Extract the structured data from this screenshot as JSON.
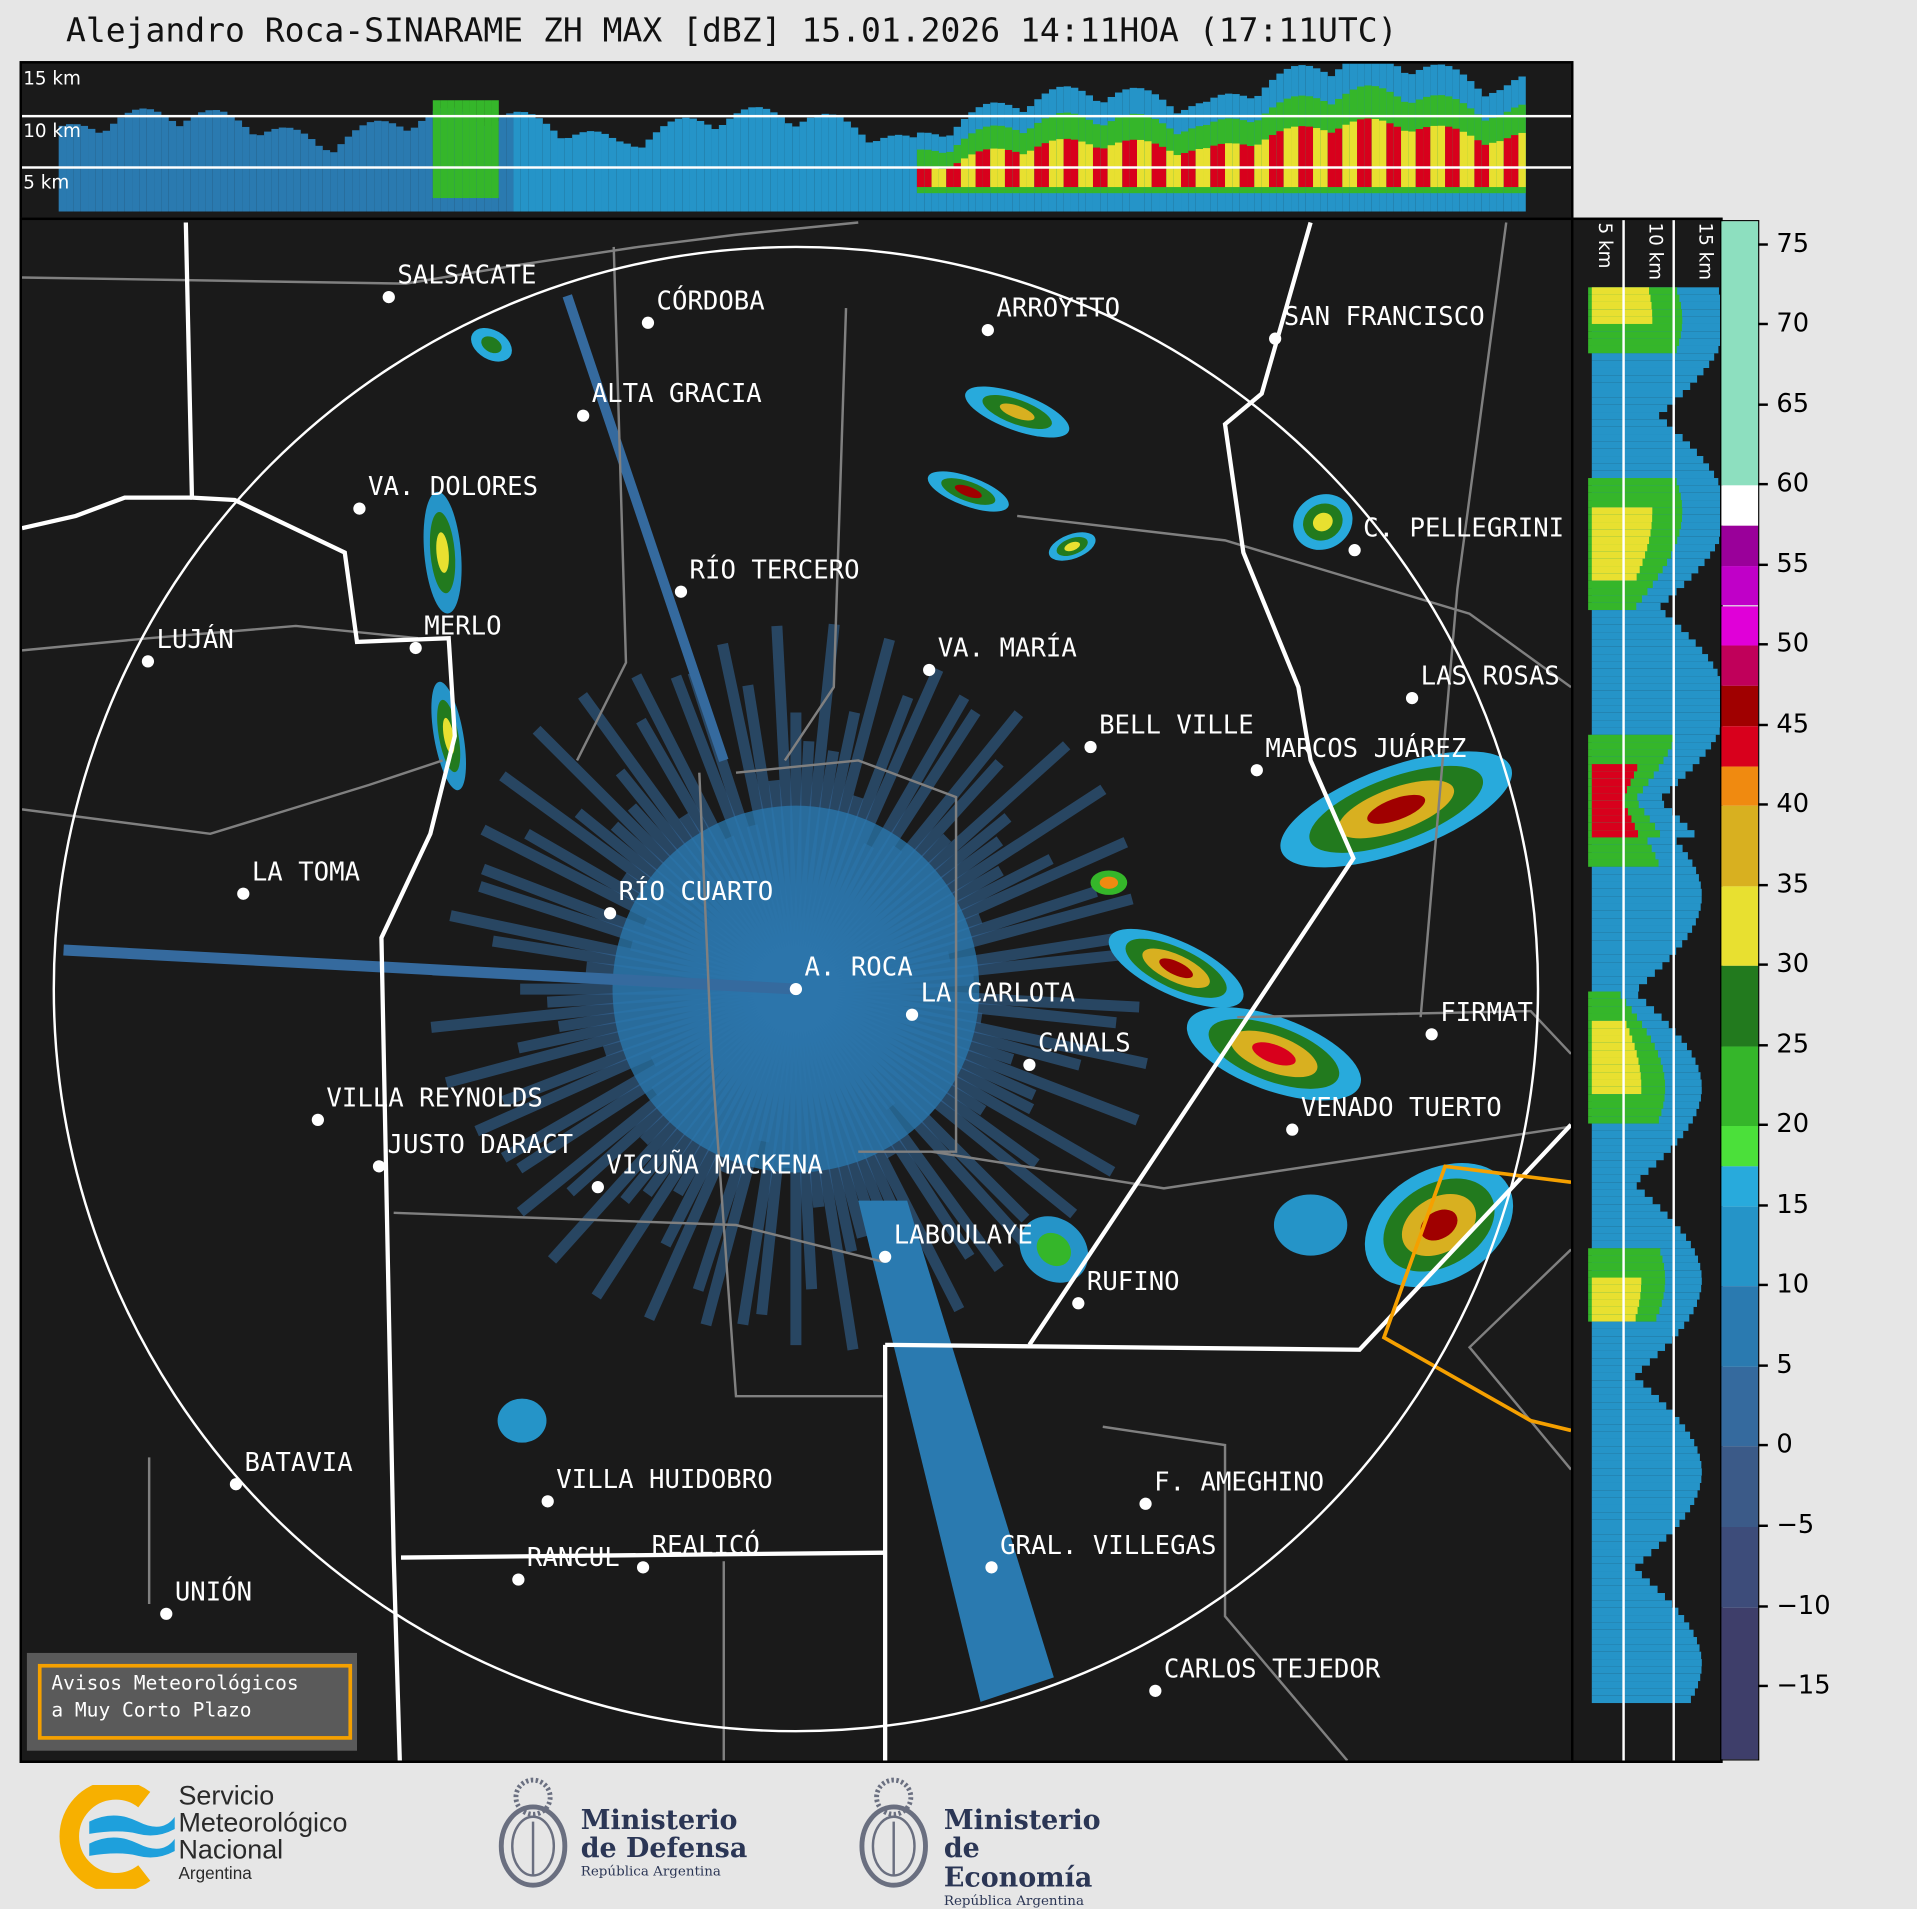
{
  "title": "Alejandro Roca-SINARAME ZH MAX [dBZ] 15.01.2026 14:11HOA (17:11UTC)",
  "top_panel": {
    "labels": [
      "15 km",
      "10 km",
      "5 km"
    ]
  },
  "side_panel": {
    "labels": [
      "5 km",
      "10 km",
      "15 km"
    ]
  },
  "colorbar": {
    "unit": "dBZ",
    "ticks": [
      "75",
      "70",
      "65",
      "60",
      "55",
      "50",
      "45",
      "40",
      "35",
      "30",
      "25",
      "20",
      "15",
      "10",
      "5",
      "0",
      "−5",
      "−10",
      "−15"
    ],
    "range": [
      -19.5,
      76.5
    ],
    "stops": [
      {
        "from": 60,
        "color": "#8ddfbf"
      },
      {
        "from": 57.5,
        "color": "#ffffff"
      },
      {
        "from": 55,
        "color": "#9a009a"
      },
      {
        "from": 52.5,
        "color": "#c000c8"
      },
      {
        "from": 50,
        "color": "#e000d8"
      },
      {
        "from": 47.5,
        "color": "#c0005a"
      },
      {
        "from": 45,
        "color": "#a00000"
      },
      {
        "from": 42.5,
        "color": "#d8001c"
      },
      {
        "from": 40,
        "color": "#f08a10"
      },
      {
        "from": 35,
        "color": "#d8b020"
      },
      {
        "from": 30,
        "color": "#e8e030"
      },
      {
        "from": 25,
        "color": "#227a1e"
      },
      {
        "from": 20,
        "color": "#35b62a"
      },
      {
        "from": 17.5,
        "color": "#4be03a"
      },
      {
        "from": 15,
        "color": "#28aadc"
      },
      {
        "from": 10,
        "color": "#2594c8"
      },
      {
        "from": 5,
        "color": "#2a7ab0"
      },
      {
        "from": 0,
        "color": "#356a9e"
      },
      {
        "from": -5,
        "color": "#3b5a88"
      },
      {
        "from": -10,
        "color": "#3d4c7a"
      },
      {
        "from": -19.5,
        "color": "#3e3e6a"
      }
    ]
  },
  "radar": {
    "name": "A. ROCA"
  },
  "cities": [
    "SALSACATE",
    "CÓRDOBA",
    "ARROYITO",
    "SAN FRANCISCO",
    "ALTA GRACIA",
    "VA. DOLORES",
    "C. PELLEGRINI",
    "RÍO TERCERO",
    "LUJÁN",
    "MERLO",
    "VA. MARÍA",
    "LAS ROSAS",
    "BELL VILLE",
    "MARCOS JUÁREZ",
    "LA TOMA",
    "RÍO CUARTO",
    "A. ROCA",
    "LA CARLOTA",
    "FIRMAT",
    "CANALS",
    "VILLA REYNOLDS",
    "VENADO TUERTO",
    "JUSTO DARACT",
    "VICUÑA MACKENA",
    "LABOULAYE",
    "RUFINO",
    "BATAVIA",
    "VILLA HUIDOBRO",
    "F. AMEGHINO",
    "GRAL. VILLEGAS",
    "RANCUL",
    "REALICÓ",
    "UNIÓN",
    "CARLOS TEJEDOR"
  ],
  "warning_box": {
    "line1": "Avisos Meteorológicos",
    "line2": "a Muy Corto Plazo",
    "border_color": "#f5a000"
  },
  "logos": {
    "smn": {
      "line1": "Servicio",
      "line2": "Meteorológico",
      "line3": "Nacional",
      "line4": "Argentina"
    },
    "defensa": {
      "line1": "Ministerio",
      "line2": "de Defensa",
      "line3": "República Argentina"
    },
    "economia": {
      "line1": "Ministerio",
      "line2": "de Economía",
      "line3": "República Argentina"
    }
  }
}
